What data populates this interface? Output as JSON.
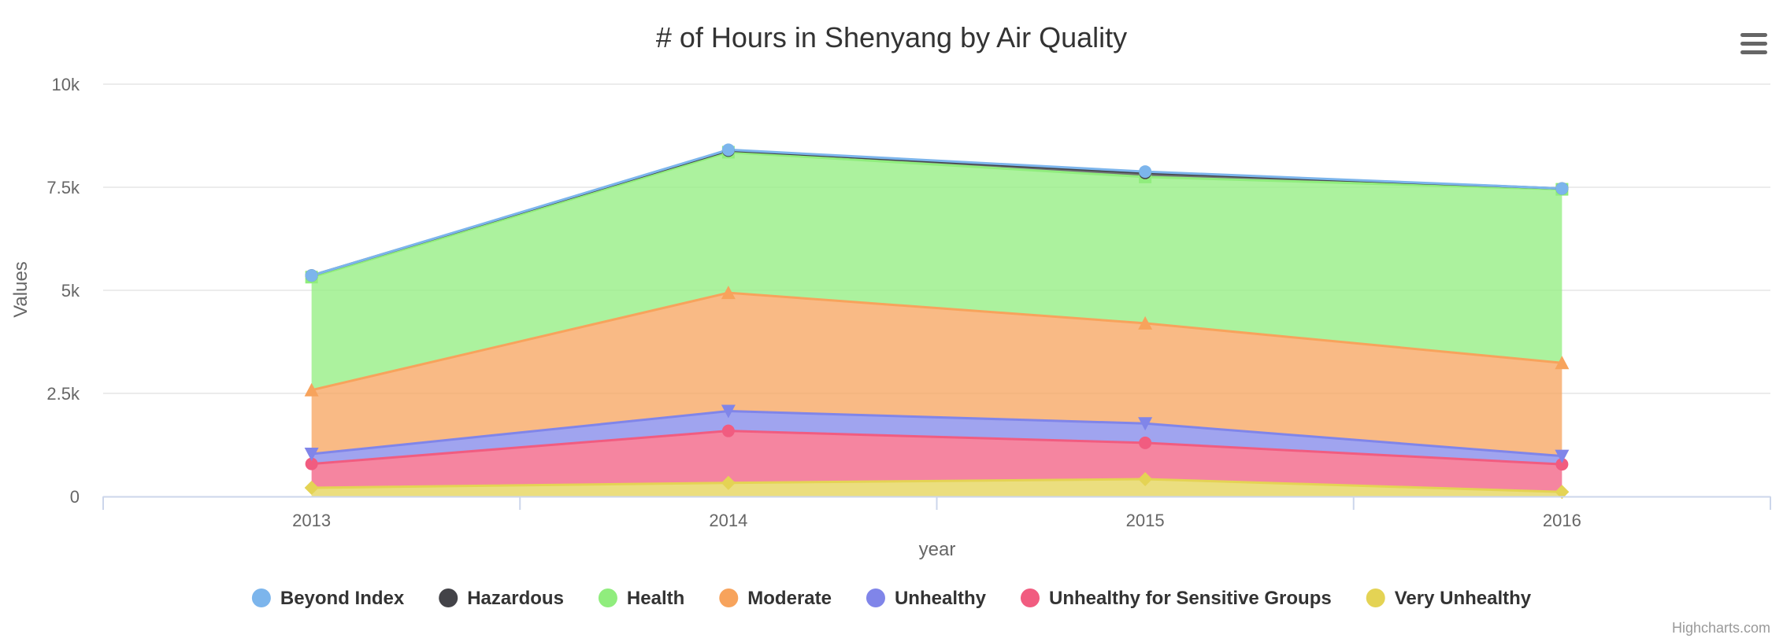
{
  "chart_data": {
    "type": "area",
    "stacking": "normal",
    "title": "# of Hours in Shenyang by Air Quality",
    "xlabel": "year",
    "ylabel": "Values",
    "categories": [
      "2013",
      "2014",
      "2015",
      "2016"
    ],
    "ylim": [
      0,
      10000
    ],
    "yticks": [
      0,
      2500,
      5000,
      7500,
      10000
    ],
    "ytick_labels": [
      "0",
      "2.5k",
      "5k",
      "7.5k",
      "10k"
    ],
    "grid": true,
    "legend_position": "bottom",
    "series": [
      {
        "name": "Beyond Index",
        "color": "#7cb5ec",
        "marker": "circle",
        "values": [
          0,
          20,
          30,
          0
        ]
      },
      {
        "name": "Hazardous",
        "color": "#434348",
        "marker": "circle",
        "values": [
          40,
          40,
          100,
          20
        ]
      },
      {
        "name": "Health",
        "color": "#90ed7d",
        "marker": "square",
        "values": [
          2740,
          3410,
          3550,
          4210
        ]
      },
      {
        "name": "Moderate",
        "color": "#f7a35c",
        "marker": "triangle",
        "values": [
          1550,
          2870,
          2430,
          2260
        ]
      },
      {
        "name": "Unhealthy",
        "color": "#8085e9",
        "marker": "triangle-down",
        "values": [
          240,
          480,
          470,
          200
        ]
      },
      {
        "name": "Unhealthy for Sensitive Groups",
        "color": "#f15c80",
        "marker": "circle",
        "values": [
          580,
          1260,
          880,
          670
        ]
      },
      {
        "name": "Very Unhealthy",
        "color": "#e4d354",
        "marker": "diamond",
        "values": [
          210,
          330,
          420,
          110
        ]
      }
    ]
  },
  "credits": "Highcharts.com",
  "menu_icon": "hamburger-menu-icon"
}
